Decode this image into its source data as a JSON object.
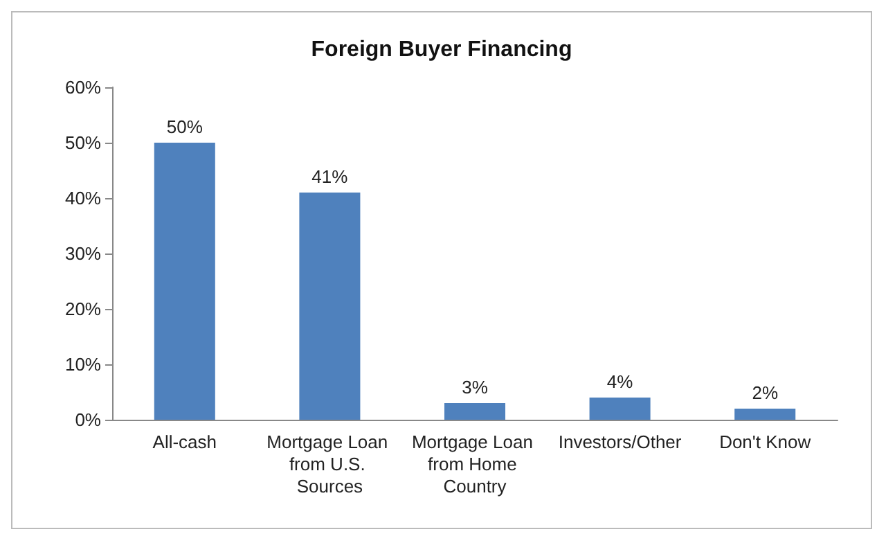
{
  "chart_data": {
    "type": "bar",
    "title": "Foreign Buyer Financing",
    "categories": [
      "All-cash",
      "Mortgage Loan from U.S. Sources",
      "Mortgage Loan from Home Country",
      "Investors/Other",
      "Don't Know"
    ],
    "values": [
      50,
      41,
      3,
      4,
      2
    ],
    "value_labels": [
      "50%",
      "41%",
      "3%",
      "4%",
      "2%"
    ],
    "color": "#4f81bd",
    "ylim": [
      0,
      60
    ],
    "yticks": [
      {
        "value": 0,
        "label": "0%"
      },
      {
        "value": 10,
        "label": "10%"
      },
      {
        "value": 20,
        "label": "20%"
      },
      {
        "value": 30,
        "label": "30%"
      },
      {
        "value": 40,
        "label": "40%"
      },
      {
        "value": 50,
        "label": "50%"
      },
      {
        "value": 60,
        "label": "60%"
      }
    ],
    "grid": false
  }
}
